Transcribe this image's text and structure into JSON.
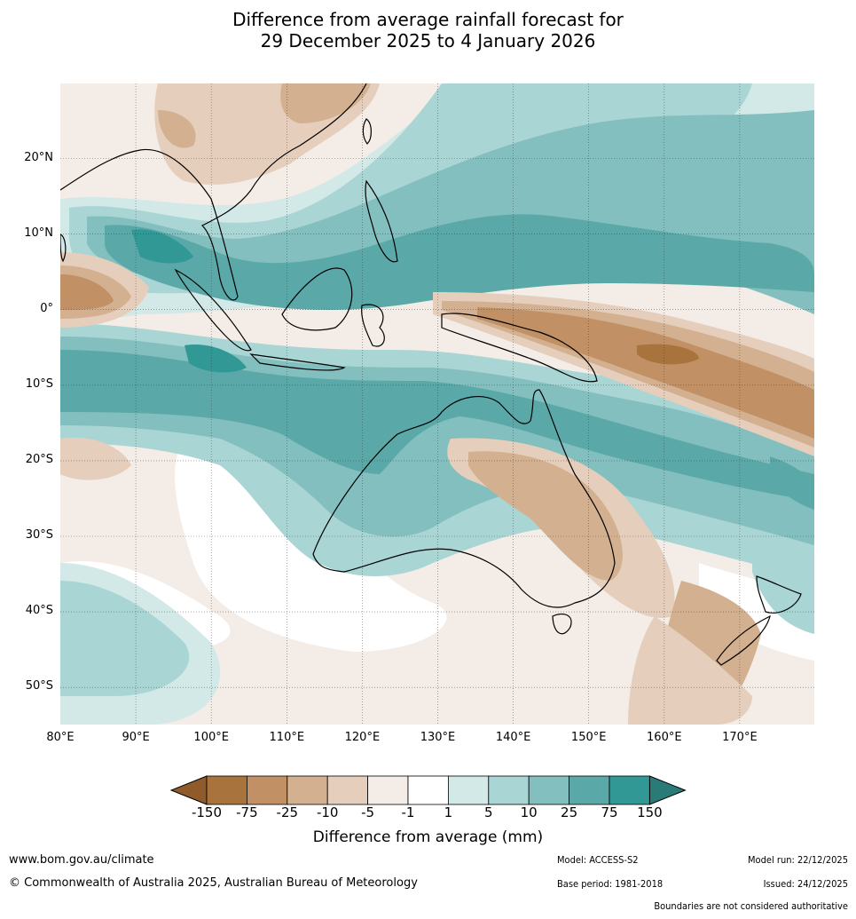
{
  "title": {
    "line1": "Difference from average rainfall forecast for",
    "line2": "29 December 2025 to 4 January 2026"
  },
  "axes": {
    "lat_labels": [
      "20°N",
      "10°N",
      "0°",
      "10°S",
      "20°S",
      "30°S",
      "40°S",
      "50°S"
    ],
    "lon_labels": [
      "80°E",
      "90°E",
      "100°E",
      "110°E",
      "120°E",
      "130°E",
      "140°E",
      "150°E",
      "160°E",
      "170°E"
    ]
  },
  "legend": {
    "title": "Difference from average (mm)",
    "ticks": [
      "-150",
      "-75",
      "-25",
      "-10",
      "-5",
      "-1",
      "1",
      "5",
      "10",
      "25",
      "75",
      "150"
    ],
    "colors": [
      "#a8733c",
      "#c19064",
      "#d3b08f",
      "#e5cfbc",
      "#f4ece6",
      "#ffffff",
      "#d3e9e8",
      "#a9d5d4",
      "#82bfbe",
      "#5aa9a8",
      "#319896"
    ],
    "under_color": "#8f5b2a",
    "over_color": "#2a7a78"
  },
  "footer": {
    "url": "www.bom.gov.au/climate",
    "copyright": "© Commonwealth of Australia 2025, Australian Bureau of Meteorology",
    "model": "Model: ACCESS-S2",
    "base_period": "Base period: 1981-2018",
    "model_run": "Model run: 22/12/2025",
    "issued": "Issued: 24/12/2025",
    "boundaries": "Boundaries are not considered authoritative"
  }
}
